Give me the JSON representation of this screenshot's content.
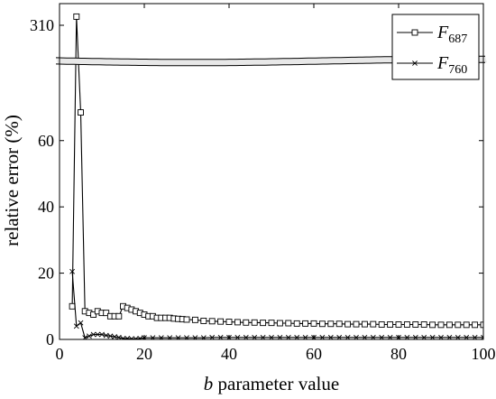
{
  "chart_data": {
    "type": "line",
    "xlabel_italic": "b",
    "xlabel_rest": " parameter value",
    "ylabel": "relative error (%)",
    "xlim": [
      0,
      100
    ],
    "ylim_lower": [
      0,
      82
    ],
    "ylim_upper_label": "310",
    "axis_break": "between 80 and 310",
    "x_ticks": [
      "0",
      "20",
      "40",
      "60",
      "80",
      "100"
    ],
    "y_ticks": [
      "0",
      "20",
      "40",
      "60"
    ],
    "grid": false,
    "legend_position": "top-right",
    "series": [
      {
        "name": "F",
        "subscript": "687",
        "marker": "square",
        "color": "#000000",
        "points": [
          [
            3,
            10
          ],
          [
            4,
            313
          ],
          [
            5,
            68.5
          ],
          [
            6,
            8.5
          ],
          [
            7,
            8
          ],
          [
            8,
            7.5
          ],
          [
            9,
            8.5
          ],
          [
            10,
            8
          ],
          [
            11,
            8
          ],
          [
            12,
            7
          ],
          [
            13,
            7
          ],
          [
            14,
            7
          ],
          [
            15,
            10
          ],
          [
            16,
            9.5
          ],
          [
            17,
            9
          ],
          [
            18,
            8.5
          ],
          [
            19,
            8
          ],
          [
            20,
            7.5
          ],
          [
            21,
            7
          ],
          [
            22,
            7
          ],
          [
            23,
            6.5
          ],
          [
            24,
            6.5
          ],
          [
            25,
            6.5
          ],
          [
            26,
            6.5
          ],
          [
            27,
            6.3
          ],
          [
            28,
            6.2
          ],
          [
            29,
            6.1
          ],
          [
            30,
            6
          ],
          [
            32,
            5.9
          ],
          [
            34,
            5.6
          ],
          [
            36,
            5.5
          ],
          [
            38,
            5.4
          ],
          [
            40,
            5.3
          ],
          [
            42,
            5.2
          ],
          [
            44,
            5.1
          ],
          [
            46,
            5.1
          ],
          [
            48,
            5
          ],
          [
            50,
            5
          ],
          [
            52,
            4.9
          ],
          [
            54,
            4.9
          ],
          [
            56,
            4.8
          ],
          [
            58,
            4.8
          ],
          [
            60,
            4.8
          ],
          [
            62,
            4.7
          ],
          [
            64,
            4.7
          ],
          [
            66,
            4.7
          ],
          [
            68,
            4.6
          ],
          [
            70,
            4.6
          ],
          [
            72,
            4.6
          ],
          [
            74,
            4.6
          ],
          [
            76,
            4.5
          ],
          [
            78,
            4.5
          ],
          [
            80,
            4.5
          ],
          [
            82,
            4.5
          ],
          [
            84,
            4.5
          ],
          [
            86,
            4.5
          ],
          [
            88,
            4.4
          ],
          [
            90,
            4.4
          ],
          [
            92,
            4.4
          ],
          [
            94,
            4.4
          ],
          [
            96,
            4.4
          ],
          [
            98,
            4.4
          ],
          [
            100,
            4.4
          ]
        ]
      },
      {
        "name": "F",
        "subscript": "760",
        "marker": "x",
        "color": "#000000",
        "points": [
          [
            3,
            20.5
          ],
          [
            4,
            4
          ],
          [
            5,
            5
          ],
          [
            6,
            0.5
          ],
          [
            7,
            1
          ],
          [
            8,
            1.5
          ],
          [
            9,
            1.5
          ],
          [
            10,
            1.5
          ],
          [
            11,
            1.2
          ],
          [
            12,
            1
          ],
          [
            13,
            0.8
          ],
          [
            14,
            0.6
          ],
          [
            15,
            0.3
          ],
          [
            16,
            0.3
          ],
          [
            17,
            0.2
          ],
          [
            18,
            0.2
          ],
          [
            19,
            0.3
          ],
          [
            20,
            0.5
          ],
          [
            22,
            0.5
          ],
          [
            24,
            0.5
          ],
          [
            26,
            0.5
          ],
          [
            28,
            0.5
          ],
          [
            30,
            0.5
          ],
          [
            32,
            0.5
          ],
          [
            34,
            0.5
          ],
          [
            36,
            0.6
          ],
          [
            38,
            0.6
          ],
          [
            40,
            0.6
          ],
          [
            42,
            0.6
          ],
          [
            44,
            0.6
          ],
          [
            46,
            0.6
          ],
          [
            48,
            0.6
          ],
          [
            50,
            0.6
          ],
          [
            52,
            0.6
          ],
          [
            54,
            0.6
          ],
          [
            56,
            0.6
          ],
          [
            58,
            0.6
          ],
          [
            60,
            0.6
          ],
          [
            62,
            0.6
          ],
          [
            64,
            0.6
          ],
          [
            66,
            0.6
          ],
          [
            68,
            0.6
          ],
          [
            70,
            0.6
          ],
          [
            72,
            0.6
          ],
          [
            74,
            0.6
          ],
          [
            76,
            0.6
          ],
          [
            78,
            0.6
          ],
          [
            80,
            0.6
          ],
          [
            82,
            0.6
          ],
          [
            84,
            0.6
          ],
          [
            86,
            0.6
          ],
          [
            88,
            0.6
          ],
          [
            90,
            0.6
          ],
          [
            92,
            0.6
          ],
          [
            94,
            0.6
          ],
          [
            96,
            0.6
          ],
          [
            98,
            0.6
          ],
          [
            100,
            0.6
          ]
        ]
      }
    ]
  }
}
